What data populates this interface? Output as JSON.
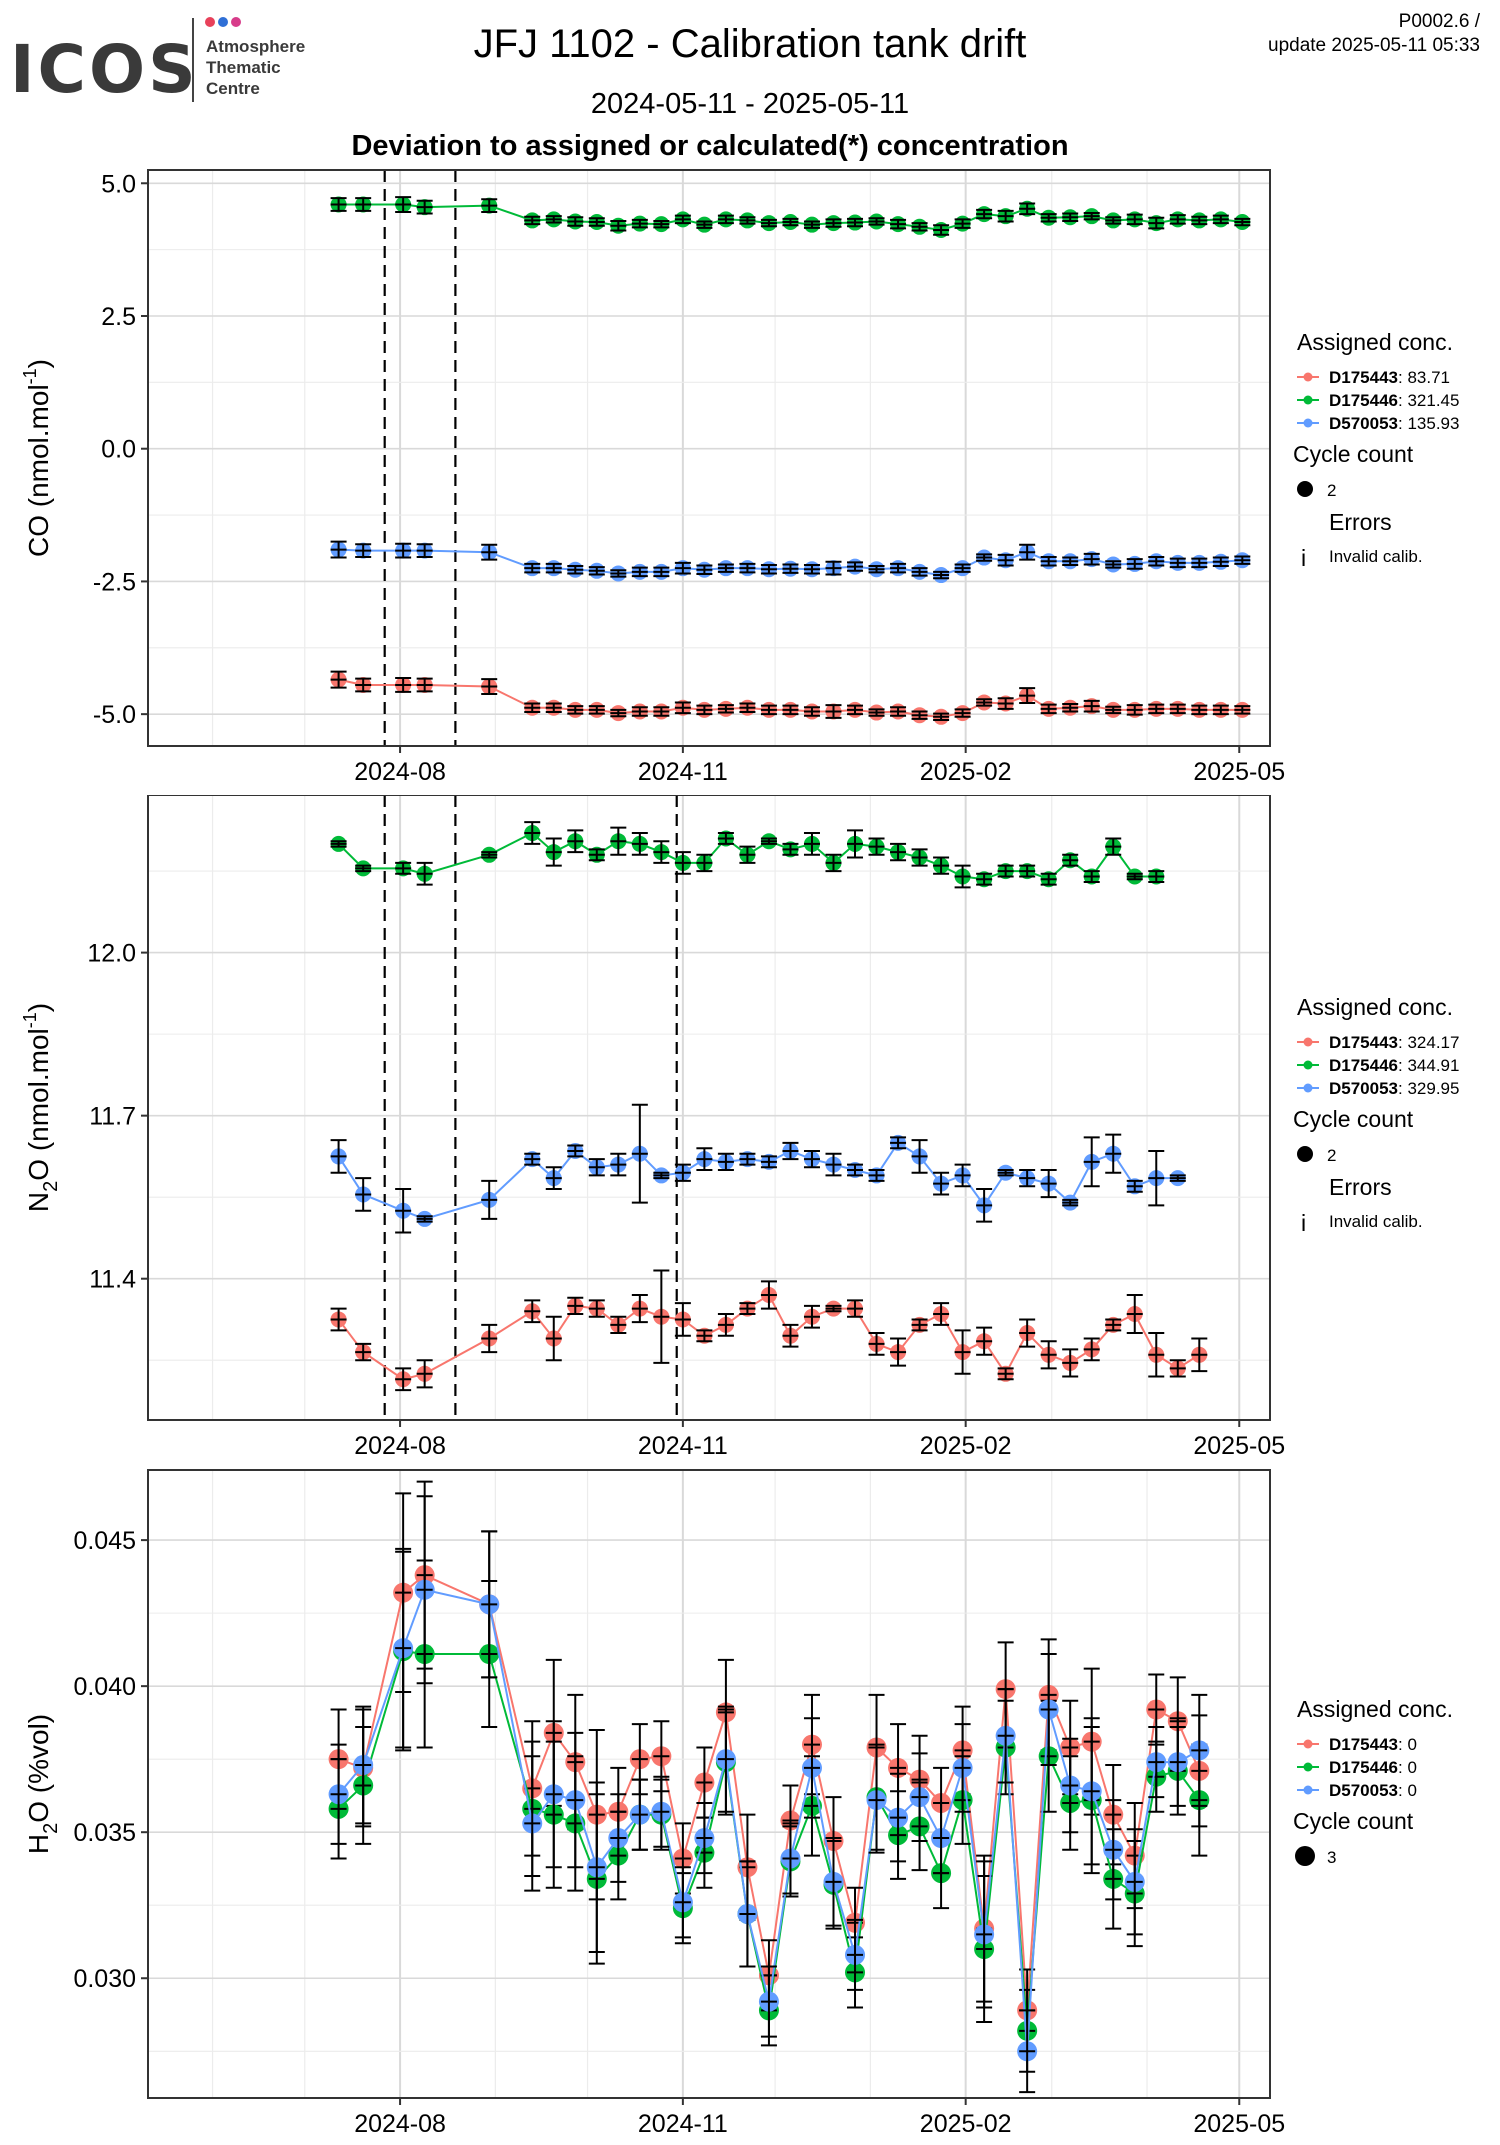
{
  "header": {
    "logo_text": "ICOS",
    "logo_sub": [
      "Atmosphere",
      "Thematic",
      "Centre"
    ],
    "title": "JFJ 1102 - Calibration tank drift",
    "date_range": "2024-05-11 - 2025-05-11",
    "subtitle": "Deviation to assigned or calculated(*) concentration",
    "ref_code": "P0002.6 /",
    "update": "update  2025-05-11 05:33"
  },
  "colors": {
    "D175443": "#F8766D",
    "D175446": "#00BA38",
    "D570053": "#619CFF",
    "grid_major": "#d9d9d9",
    "grid_minor": "#ececec"
  },
  "chart_data": [
    {
      "type": "scatter",
      "ylabel": "CO (nmol.mol-1)",
      "ylabel_main": "CO (nmol.mol",
      "ylabel_sup": "-1",
      "ylabel_end": ")",
      "xlim": [
        "2024-05-11",
        "2025-05-11"
      ],
      "ylim": [
        -5.6,
        5.25
      ],
      "xticks": [
        "2024-08",
        "2024-11",
        "2025-02",
        "2025-05"
      ],
      "yticks": [
        5.0,
        2.5,
        0.0,
        -2.5,
        -5.0
      ],
      "ytick_labels": [
        "5.0",
        "2.5",
        "0.0",
        "-2.5",
        "-5.0"
      ],
      "vlines": [
        "2024-07-27",
        "2024-08-19"
      ],
      "legend": {
        "title": "Assigned conc.",
        "items": [
          {
            "name": "D175443",
            "value": "83.71"
          },
          {
            "name": "D175446",
            "value": "321.45"
          },
          {
            "name": "D570053",
            "value": "135.93"
          }
        ],
        "cycle_title": "Cycle count",
        "cycle_value": "2",
        "errors_title": "Errors",
        "errors_symbol": "i",
        "errors_label": "Invalid calib."
      },
      "marker_radius": 8,
      "x": [
        "2024-07-12",
        "2024-07-20",
        "2024-08-02",
        "2024-08-09",
        "2024-08-30",
        "2024-09-13",
        "2024-09-20",
        "2024-09-27",
        "2024-10-04",
        "2024-10-11",
        "2024-10-18",
        "2024-10-25",
        "2024-11-01",
        "2024-11-08",
        "2024-11-15",
        "2024-11-22",
        "2024-11-29",
        "2024-12-06",
        "2024-12-13",
        "2024-12-20",
        "2024-12-27",
        "2025-01-03",
        "2025-01-10",
        "2025-01-17",
        "2025-01-24",
        "2025-01-31",
        "2025-02-07",
        "2025-02-14",
        "2025-02-21",
        "2025-02-28",
        "2025-03-07",
        "2025-03-14",
        "2025-03-21",
        "2025-03-28",
        "2025-04-04",
        "2025-04-11",
        "2025-04-18",
        "2025-04-25",
        "2025-05-02"
      ],
      "series": [
        {
          "name": "D175443",
          "y": [
            -4.35,
            -4.45,
            -4.45,
            -4.45,
            -4.48,
            -4.88,
            -4.88,
            -4.92,
            -4.92,
            -4.98,
            -4.95,
            -4.95,
            -4.88,
            -4.92,
            -4.9,
            -4.88,
            -4.92,
            -4.92,
            -4.95,
            -4.95,
            -4.92,
            -4.97,
            -4.95,
            -5.02,
            -5.05,
            -4.98,
            -4.78,
            -4.8,
            -4.65,
            -4.9,
            -4.88,
            -4.85,
            -4.92,
            -4.92,
            -4.9,
            -4.9,
            -4.92,
            -4.92,
            -4.92
          ],
          "err": [
            0.15,
            0.12,
            0.13,
            0.12,
            0.14,
            0.08,
            0.08,
            0.07,
            0.07,
            0.06,
            0.08,
            0.08,
            0.1,
            0.08,
            0.07,
            0.08,
            0.08,
            0.08,
            0.08,
            0.12,
            0.08,
            0.06,
            0.08,
            0.07,
            0.06,
            0.07,
            0.06,
            0.1,
            0.14,
            0.08,
            0.07,
            0.1,
            0.06,
            0.09,
            0.08,
            0.08,
            0.08,
            0.08,
            0.07
          ]
        },
        {
          "name": "D175446",
          "y": [
            4.6,
            4.6,
            4.6,
            4.55,
            4.58,
            4.3,
            4.32,
            4.28,
            4.27,
            4.2,
            4.24,
            4.23,
            4.32,
            4.22,
            4.32,
            4.3,
            4.25,
            4.27,
            4.22,
            4.25,
            4.26,
            4.28,
            4.23,
            4.18,
            4.12,
            4.24,
            4.42,
            4.38,
            4.52,
            4.35,
            4.36,
            4.38,
            4.3,
            4.32,
            4.25,
            4.32,
            4.3,
            4.32,
            4.27
          ],
          "err": [
            0.12,
            0.12,
            0.14,
            0.12,
            0.12,
            0.07,
            0.06,
            0.08,
            0.07,
            0.09,
            0.07,
            0.06,
            0.07,
            0.06,
            0.07,
            0.06,
            0.06,
            0.06,
            0.06,
            0.07,
            0.07,
            0.06,
            0.08,
            0.07,
            0.09,
            0.08,
            0.08,
            0.1,
            0.1,
            0.07,
            0.07,
            0.06,
            0.06,
            0.09,
            0.1,
            0.08,
            0.07,
            0.07,
            0.06
          ]
        },
        {
          "name": "D570053",
          "y": [
            -1.9,
            -1.92,
            -1.92,
            -1.92,
            -1.95,
            -2.25,
            -2.25,
            -2.28,
            -2.3,
            -2.35,
            -2.32,
            -2.32,
            -2.25,
            -2.28,
            -2.25,
            -2.25,
            -2.27,
            -2.26,
            -2.27,
            -2.25,
            -2.22,
            -2.27,
            -2.25,
            -2.32,
            -2.38,
            -2.25,
            -2.05,
            -2.1,
            -1.95,
            -2.12,
            -2.12,
            -2.08,
            -2.18,
            -2.17,
            -2.12,
            -2.15,
            -2.15,
            -2.13,
            -2.1
          ]
        }
      ]
    },
    {
      "type": "scatter",
      "ylabel": "N2O (nmol.mol-1)",
      "ylabel_main": "N",
      "ylabel_sub": "2",
      "ylabel_mid": "O (nmol.mol",
      "ylabel_sup": "-1",
      "ylabel_end": ")",
      "xlim": [
        "2024-05-11",
        "2025-05-11"
      ],
      "ylim": [
        11.14,
        12.29
      ],
      "xticks": [
        "2024-08",
        "2024-11",
        "2025-02",
        "2025-05"
      ],
      "yticks": [
        12.0,
        11.7,
        11.4
      ],
      "ytick_labels": [
        "12.0",
        "11.7",
        "11.4"
      ],
      "vlines": [
        "2024-07-27",
        "2024-08-19",
        "2024-10-30"
      ],
      "legend": {
        "title": "Assigned conc.",
        "items": [
          {
            "name": "D175443",
            "value": "324.17"
          },
          {
            "name": "D175446",
            "value": "344.91"
          },
          {
            "name": "D570053",
            "value": "329.95"
          }
        ],
        "cycle_title": "Cycle count",
        "cycle_value": "2",
        "errors_title": "Errors",
        "errors_symbol": "i",
        "errors_label": "Invalid calib."
      },
      "marker_radius": 8,
      "x": [
        "2024-07-12",
        "2024-07-20",
        "2024-08-02",
        "2024-08-09",
        "2024-08-30",
        "2024-09-13",
        "2024-09-20",
        "2024-09-27",
        "2024-10-04",
        "2024-10-11",
        "2024-10-18",
        "2024-10-25",
        "2024-11-01",
        "2024-11-08",
        "2024-11-15",
        "2024-11-22",
        "2024-11-29",
        "2024-12-06",
        "2024-12-13",
        "2024-12-20",
        "2024-12-27",
        "2025-01-03",
        "2025-01-10",
        "2025-01-17",
        "2025-01-24",
        "2025-01-31",
        "2025-02-07",
        "2025-02-14",
        "2025-02-21",
        "2025-02-28",
        "2025-03-07",
        "2025-03-14",
        "2025-03-21",
        "2025-03-28",
        "2025-04-04",
        "2025-04-11",
        "2025-04-18",
        "2025-04-25",
        "2025-05-02"
      ],
      "series": [
        {
          "name": "D175443",
          "y": [
            11.325,
            11.265,
            11.215,
            11.225,
            11.29,
            11.34,
            11.29,
            11.35,
            11.345,
            11.315,
            11.345,
            11.33,
            11.325,
            11.295,
            11.315,
            11.345,
            11.37,
            11.295,
            11.33,
            11.345,
            11.345,
            11.28,
            11.265,
            11.315,
            11.335,
            11.265,
            11.285,
            11.225,
            11.3,
            11.26,
            11.245,
            11.27,
            11.315,
            11.335,
            11.26,
            11.235,
            11.26
          ],
          "err": [
            0.02,
            0.015,
            0.02,
            0.025,
            0.025,
            0.02,
            0.04,
            0.015,
            0.015,
            0.015,
            0.025,
            0.085,
            0.03,
            0.01,
            0.02,
            0.01,
            0.025,
            0.02,
            0.02,
            0.005,
            0.015,
            0.02,
            0.025,
            0.01,
            0.02,
            0.04,
            0.025,
            0.01,
            0.025,
            0.025,
            0.025,
            0.02,
            0.01,
            0.035,
            0.04,
            0.015,
            0.03
          ]
        },
        {
          "name": "D175446",
          "y": [
            12.2,
            12.155,
            12.155,
            12.145,
            12.18,
            12.22,
            12.185,
            12.205,
            12.18,
            12.205,
            12.2,
            12.185,
            12.165,
            12.165,
            12.21,
            12.18,
            12.205,
            12.19,
            12.2,
            12.165,
            12.2,
            12.195,
            12.185,
            12.175,
            12.16,
            12.14,
            12.135,
            12.15,
            12.15,
            12.135,
            12.17,
            12.14,
            12.195,
            12.14,
            12.14
          ],
          "err": [
            0.005,
            0.005,
            0.01,
            0.02,
            0.005,
            0.02,
            0.025,
            0.02,
            0.01,
            0.025,
            0.02,
            0.02,
            0.02,
            0.015,
            0.01,
            0.015,
            0.005,
            0.01,
            0.02,
            0.015,
            0.025,
            0.015,
            0.015,
            0.015,
            0.015,
            0.02,
            0.01,
            0.01,
            0.01,
            0.01,
            0.01,
            0.01,
            0.015,
            0.005,
            0.01
          ]
        },
        {
          "name": "D570053",
          "y": [
            11.625,
            11.555,
            11.525,
            11.51,
            11.545,
            11.62,
            11.585,
            11.635,
            11.605,
            11.61,
            11.63,
            11.59,
            11.595,
            11.62,
            11.615,
            11.62,
            11.615,
            11.635,
            11.62,
            11.61,
            11.6,
            11.59,
            11.65,
            11.625,
            11.575,
            11.59,
            11.535,
            11.595,
            11.585,
            11.575,
            11.54,
            11.615,
            11.63,
            11.57,
            11.585,
            11.585
          ],
          "err": [
            0.03,
            0.03,
            0.04,
            0.005,
            0.035,
            0.01,
            0.02,
            0.01,
            0.015,
            0.02,
            0.09,
            0.005,
            0.015,
            0.02,
            0.015,
            0.01,
            0.01,
            0.015,
            0.015,
            0.02,
            0.01,
            0.01,
            0.01,
            0.03,
            0.02,
            0.02,
            0.03,
            0.005,
            0.015,
            0.025,
            0.005,
            0.045,
            0.035,
            0.01,
            0.05,
            0.005
          ]
        }
      ]
    },
    {
      "type": "scatter",
      "ylabel": "H2O (%vol)",
      "ylabel_main": "H",
      "ylabel_sub": "2",
      "ylabel_mid": "O (%vol)",
      "ylabel_sup": "",
      "ylabel_end": "",
      "xlim": [
        "2024-05-11",
        "2025-05-11"
      ],
      "ylim": [
        0.0259,
        0.0474
      ],
      "xticks": [
        "2024-08",
        "2024-11",
        "2025-02",
        "2025-05"
      ],
      "yticks": [
        0.045,
        0.04,
        0.035,
        0.03
      ],
      "ytick_labels": [
        "0.045",
        "0.040",
        "0.035",
        "0.030"
      ],
      "vlines": [],
      "legend": {
        "title": "Assigned conc.",
        "items": [
          {
            "name": "D175443",
            "value": "0"
          },
          {
            "name": "D175446",
            "value": "0"
          },
          {
            "name": "D570053",
            "value": "0"
          }
        ],
        "cycle_title": "Cycle count",
        "cycle_value": "3"
      },
      "marker_radius": 10,
      "x": [
        "2024-07-12",
        "2024-07-20",
        "2024-08-02",
        "2024-08-09",
        "2024-08-30",
        "2024-09-13",
        "2024-09-20",
        "2024-09-27",
        "2024-10-04",
        "2024-10-11",
        "2024-10-18",
        "2024-10-25",
        "2024-11-01",
        "2024-11-08",
        "2024-11-15",
        "2024-11-22",
        "2024-11-29",
        "2024-12-06",
        "2024-12-13",
        "2024-12-20",
        "2024-12-27",
        "2025-01-03",
        "2025-01-10",
        "2025-01-17",
        "2025-01-24",
        "2025-01-31",
        "2025-02-07",
        "2025-02-14",
        "2025-02-21",
        "2025-02-28",
        "2025-03-07",
        "2025-03-14",
        "2025-03-21",
        "2025-03-28",
        "2025-04-04",
        "2025-04-11",
        "2025-04-18",
        "2025-04-25",
        "2025-05-02"
      ],
      "series": [
        {
          "name": "D175443",
          "y": [
            0.0375,
            0.0372,
            0.0432,
            0.0438,
            0.0428,
            0.0365,
            0.0384,
            0.0374,
            0.0356,
            0.0357,
            0.0375,
            0.0376,
            0.0341,
            0.0367,
            0.0391,
            0.0338,
            0.0301,
            0.0354,
            0.038,
            0.0347,
            0.0319,
            0.0379,
            0.0372,
            0.0368,
            0.036,
            0.0378,
            0.0317,
            0.0399,
            0.0289,
            0.0397,
            0.0379,
            0.0381,
            0.0356,
            0.0342,
            0.0392,
            0.0388,
            0.0371
          ],
          "err": [
            0.0017,
            0.002,
            0.0034,
            0.0032,
            0.0025,
            0.0023,
            0.0025,
            0.0023,
            0.0029,
            0.0015,
            0.0012,
            0.0012,
            0.0012,
            0.0012,
            0.0018,
            0.0018,
            0.0012,
            0.0012,
            0.0017,
            0.0015,
            0.0012,
            0.0018,
            0.0015,
            0.0015,
            0.0012,
            0.0015,
            0.0025,
            0.0016,
            0.0014,
            0.0019,
            0.0016,
            0.0025,
            0.0017,
            0.0018,
            0.0012,
            0.0015,
            0.0019
          ]
        },
        {
          "name": "D175446",
          "y": [
            0.0358,
            0.0366,
            0.0412,
            0.0411,
            0.0411,
            0.0358,
            0.0356,
            0.0353,
            0.0334,
            0.0342,
            0.0356,
            0.0356,
            0.0324,
            0.0343,
            0.0374,
            0.0322,
            0.0289,
            0.034,
            0.0359,
            0.0332,
            0.0302,
            0.0362,
            0.0349,
            0.0352,
            0.0336,
            0.0361,
            0.031,
            0.0379,
            0.0282,
            0.0376,
            0.036,
            0.0361,
            0.0334,
            0.0329,
            0.0369,
            0.0371,
            0.0361
          ]
        },
        {
          "name": "D570053",
          "y": [
            0.0363,
            0.0373,
            0.0413,
            0.0433,
            0.0428,
            0.0353,
            0.0363,
            0.0361,
            0.0338,
            0.0348,
            0.0356,
            0.0357,
            0.0326,
            0.0348,
            0.0375,
            0.0322,
            0.0292,
            0.0341,
            0.0372,
            0.0333,
            0.0308,
            0.0361,
            0.0355,
            0.0362,
            0.0348,
            0.0372,
            0.0315,
            0.0383,
            0.0275,
            0.0392,
            0.0366,
            0.0364,
            0.0344,
            0.0333,
            0.0374,
            0.0374,
            0.0378
          ]
        }
      ]
    }
  ]
}
